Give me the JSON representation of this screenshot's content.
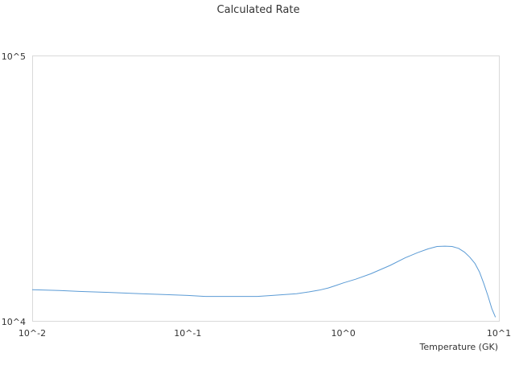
{
  "chart_data": {
    "type": "line",
    "title": "Calculated Rate",
    "xlabel": "Temperature (GK)",
    "ylabel": "",
    "xscale": "log",
    "yscale": "log",
    "xlim": [
      0.01,
      10
    ],
    "ylim": [
      10000,
      100000
    ],
    "x_ticks": [
      {
        "value": 0.01,
        "label": "10^-2"
      },
      {
        "value": 0.1,
        "label": "10^-1"
      },
      {
        "value": 1,
        "label": "10^0"
      },
      {
        "value": 10,
        "label": "10^1"
      }
    ],
    "y_ticks": [
      {
        "value": 10000,
        "label": "10^4"
      },
      {
        "value": 100000,
        "label": "10^5"
      }
    ],
    "grid": false,
    "legend": "none",
    "series": [
      {
        "color": "#5b9bd5",
        "x": [
          0.01,
          0.015,
          0.02,
          0.03,
          0.05,
          0.07,
          0.1,
          0.13,
          0.2,
          0.28,
          0.35,
          0.5,
          0.6,
          0.7,
          0.8,
          0.9,
          1.0,
          1.2,
          1.5,
          2.0,
          2.5,
          3.0,
          3.5,
          4.0,
          4.5,
          5.0,
          5.5,
          6.0,
          6.5,
          7.0,
          7.5,
          8.0,
          8.5,
          9.0,
          9.5
        ],
        "y": [
          13200,
          13100,
          13000,
          12900,
          12750,
          12650,
          12550,
          12450,
          12450,
          12450,
          12550,
          12750,
          12950,
          13150,
          13400,
          13700,
          14000,
          14450,
          15150,
          16300,
          17400,
          18200,
          18800,
          19200,
          19250,
          19200,
          18900,
          18300,
          17500,
          16600,
          15400,
          13900,
          12500,
          11200,
          10400
        ]
      }
    ]
  }
}
